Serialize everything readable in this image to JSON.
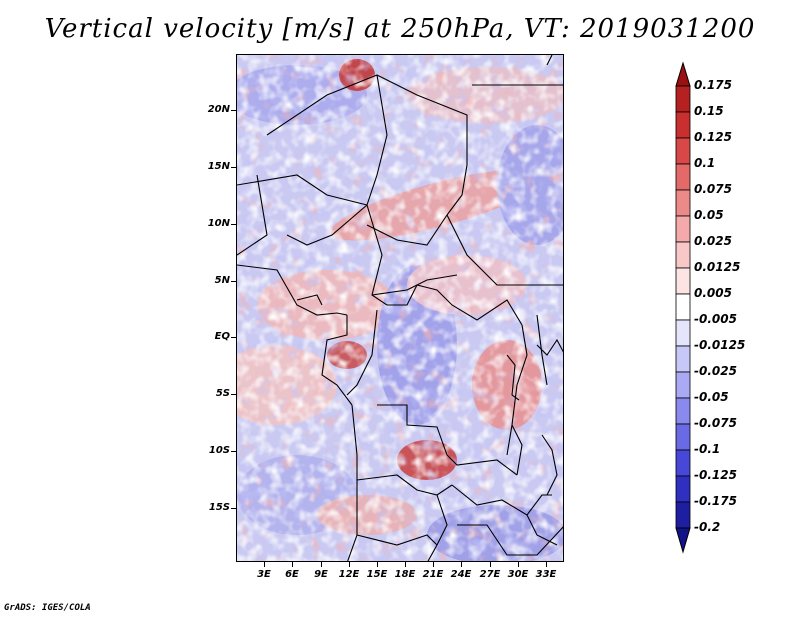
{
  "title": "Vertical velocity [m/s] at 250hPa, VT: 2019031200",
  "footer": "GrADS: IGES/COLA",
  "map": {
    "lat_labels": [
      "20N",
      "15N",
      "10N",
      "5N",
      "EQ",
      "5S",
      "10S",
      "15S"
    ],
    "lon_labels": [
      "3E",
      "6E",
      "9E",
      "12E",
      "15E",
      "18E",
      "21E",
      "24E",
      "27E",
      "30E",
      "33E"
    ]
  },
  "colorbar": {
    "levels": [
      "0.175",
      "0.15",
      "0.125",
      "0.1",
      "0.075",
      "0.05",
      "0.025",
      "0.0125",
      "0.005",
      "-0.005",
      "-0.0125",
      "-0.025",
      "-0.05",
      "-0.075",
      "-0.1",
      "-0.125",
      "-0.175",
      "-0.2"
    ],
    "colors": [
      "#9b1010",
      "#b52020",
      "#c83030",
      "#d84848",
      "#e46a6a",
      "#ec8a8a",
      "#f4aaaa",
      "#f8c8c8",
      "#fce4e4",
      "#ffffff",
      "#e4e4fc",
      "#c8c8f8",
      "#aaaaf4",
      "#8a8aee",
      "#6a6ae4",
      "#4848d8",
      "#3030c0",
      "#1e1ea0",
      "#12128a"
    ]
  }
}
